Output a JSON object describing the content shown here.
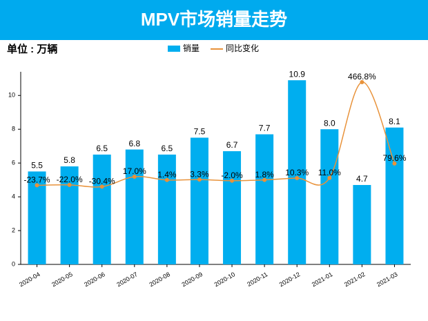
{
  "chart_data": {
    "type": "bar",
    "title": "MPV市场销量走势",
    "unit_label": "单位 : 万辆",
    "categories": [
      "2020-04",
      "2020-05",
      "2020-06",
      "2020-07",
      "2020-08",
      "2020-09",
      "2020-10",
      "2020-11",
      "2020-12",
      "2021-01",
      "2021-02",
      "2021-03"
    ],
    "series": [
      {
        "name": "销量",
        "type": "bar",
        "color": "#00aeef",
        "values": [
          5.5,
          5.8,
          6.5,
          6.8,
          6.5,
          7.5,
          6.7,
          7.7,
          10.9,
          8.0,
          4.7,
          8.1
        ],
        "value_labels": [
          "5.5",
          "5.8",
          "6.5",
          "6.8",
          "6.5",
          "7.5",
          "6.7",
          "7.7",
          "10.9",
          "8.0",
          "4.7",
          "8.1"
        ]
      },
      {
        "name": "同比变化",
        "type": "line",
        "axis": "y2",
        "color": "#e8923a",
        "values": [
          -23.7,
          -22.0,
          -30.4,
          17.0,
          1.4,
          3.3,
          -2.0,
          1.8,
          10.3,
          11.0,
          466.8,
          79.6
        ],
        "value_labels": [
          "-23.7%",
          "-22.0%",
          "-30.4%",
          "17.0%",
          "1.4%",
          "3.3%",
          "-2.0%",
          "1.8%",
          "10.3%",
          "11.0%",
          "466.8%",
          "79.6%"
        ]
      }
    ],
    "ylim": [
      0,
      11.4
    ],
    "yticks": [
      0,
      2,
      4,
      6,
      8,
      10
    ],
    "y2lim": [
      -400,
      516
    ],
    "legend": "top"
  }
}
